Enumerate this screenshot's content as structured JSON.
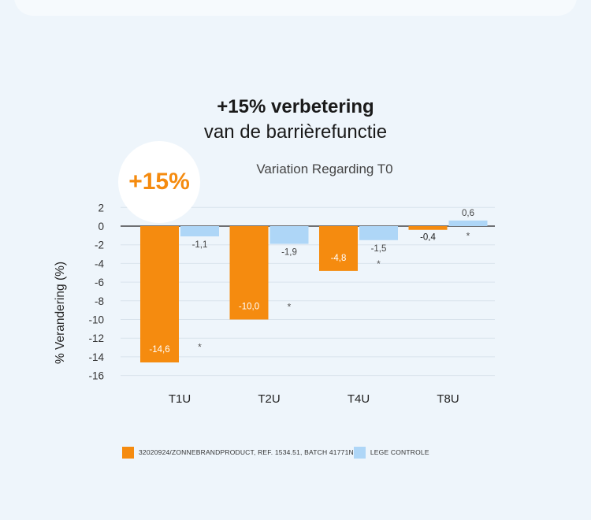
{
  "badge": "+15%",
  "title": {
    "main": "+15% verbetering",
    "sub": "van de barrièrefunctie"
  },
  "colors": {
    "orange": "#f58b0f",
    "blue": "#aed6f7",
    "badge_text": "#f58b0f"
  },
  "chart_data": {
    "type": "bar",
    "title": "Variation Regarding T0",
    "xlabel": "",
    "ylabel": "% Verandering (%)",
    "ylim": [
      -16,
      2
    ],
    "yticks": [
      2,
      0,
      -2,
      -4,
      -6,
      -8,
      -10,
      -12,
      -14,
      -16
    ],
    "grid": true,
    "legend_position": "bottom",
    "categories": [
      "T1U",
      "T2U",
      "T4U",
      "T8U"
    ],
    "series": [
      {
        "name": "32020924/ZONNEBRANDPRODUCT, REF. 1534.51, BATCH 41771N",
        "color": "#f58b0f",
        "values": [
          -14.6,
          -10.0,
          -4.8,
          -0.4
        ],
        "labels": [
          "-14,6",
          "-10,0",
          "-4,8",
          "-0,4"
        ]
      },
      {
        "name": "LEGE CONTROLE",
        "color": "#aed6f7",
        "values": [
          -1.1,
          -1.9,
          -1.5,
          0.6
        ],
        "labels": [
          "-1,1",
          "-1,9",
          "-1,5",
          "0,6"
        ]
      }
    ],
    "annotations": [
      {
        "category": "T1U",
        "text": "*",
        "y": -12.8
      },
      {
        "category": "T2U",
        "text": "*",
        "y": -8.5
      },
      {
        "category": "T4U",
        "text": "*",
        "y": -3.9
      },
      {
        "category": "T8U",
        "text": "*",
        "y": -0.9
      }
    ]
  }
}
